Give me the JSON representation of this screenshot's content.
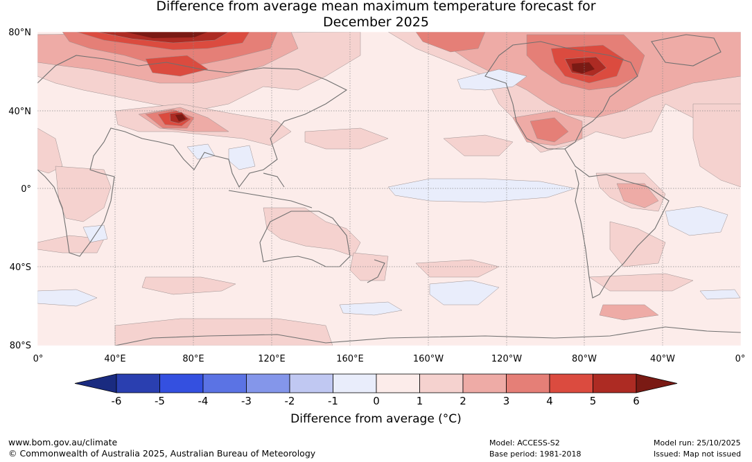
{
  "title": {
    "line1": "Difference from average mean maximum temperature forecast for",
    "line2": "December 2025"
  },
  "map": {
    "lat_labels": [
      "80°N",
      "40°N",
      "0°",
      "40°S",
      "80°S"
    ],
    "lon_labels": [
      "0°",
      "40°E",
      "80°E",
      "120°E",
      "160°E",
      "160°W",
      "120°W",
      "80°W",
      "40°W",
      "0°"
    ]
  },
  "colorbar": {
    "label": "Difference from average (°C)",
    "ticks": [
      "-6",
      "-5",
      "-4",
      "-3",
      "-2",
      "-1",
      "0",
      "1",
      "2",
      "3",
      "4",
      "5",
      "6"
    ],
    "colors": [
      "#1a2b80",
      "#2a3fb0",
      "#3450e0",
      "#5b73e4",
      "#8496ea",
      "#c0c8f2",
      "#e9edfb",
      "#fcecea",
      "#f5d2cf",
      "#eeaba6",
      "#e57f77",
      "#db4b3f",
      "#ad2b23",
      "#7a1a14"
    ]
  },
  "footer": {
    "url": "www.bom.gov.au/climate",
    "copyright": "© Commonwealth of Australia 2025, Australian Bureau of Meteorology",
    "model": "Model: ACCESS-S2",
    "base_period": "Base period: 1981-2018",
    "model_run": "Model run: 25/10/2025",
    "issued": "Issued: Map not issued"
  }
}
